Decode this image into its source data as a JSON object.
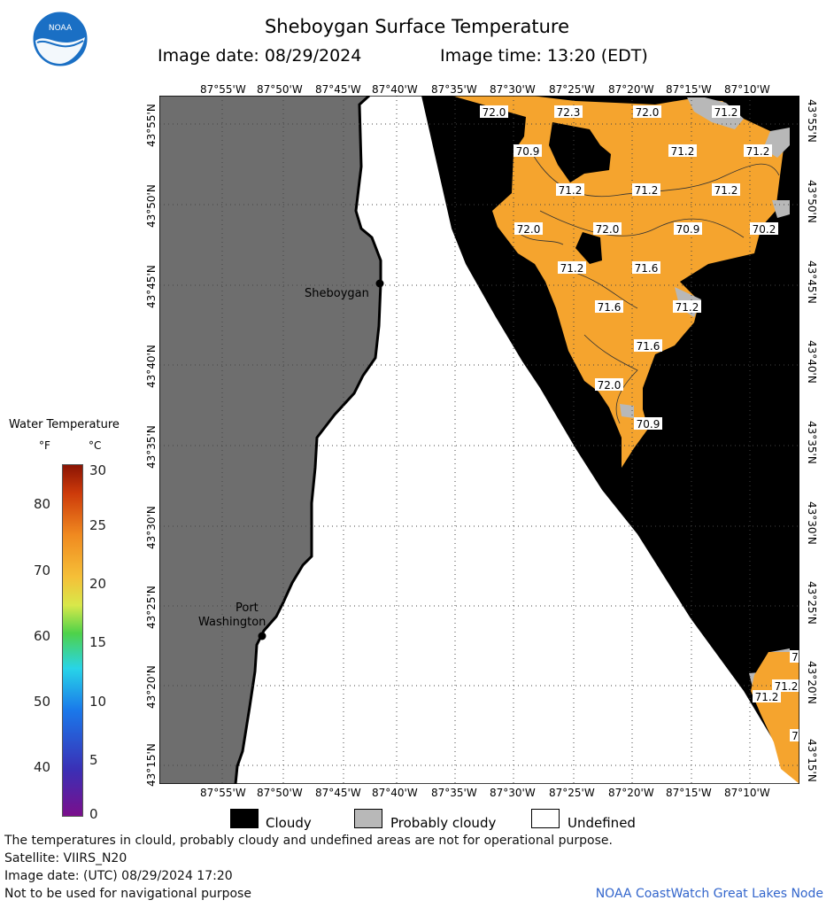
{
  "header": {
    "title": "Sheboygan Surface Temperature",
    "image_date": "Image date: 08/29/2024",
    "image_time": "Image time: 13:20 (EDT)"
  },
  "logo": {
    "text": "NOAA",
    "icon": "noaa-logo-icon",
    "colors": {
      "outer": "#1a6fc4",
      "bird": "#ffffff"
    }
  },
  "axes": {
    "lon_top": [
      "87°55'W",
      "87°50'W",
      "87°45'W",
      "87°40'W",
      "87°35'W",
      "87°30'W",
      "87°25'W",
      "87°20'W",
      "87°15'W",
      "87°10'W"
    ],
    "lon_bottom": [
      "87°55'W",
      "87°50'W",
      "87°45'W",
      "87°40'W",
      "87°35'W",
      "87°30'W",
      "87°25'W",
      "87°20'W",
      "87°15'W",
      "87°10'W"
    ],
    "lat_left": [
      "43°55'N",
      "43°50'N",
      "43°45'N",
      "43°40'N",
      "43°35'N",
      "43°30'N",
      "43°25'N",
      "43°20'N",
      "43°15'N"
    ],
    "lat_right": [
      "43°55'N",
      "43°50'N",
      "43°45'N",
      "43°40'N",
      "43°35'N",
      "43°30'N",
      "43°25'N",
      "43°20'N",
      "43°15'N"
    ]
  },
  "places": [
    {
      "name": "Sheboygan"
    },
    {
      "name": "Port"
    },
    {
      "name": "Washington"
    }
  ],
  "temperature_labels": [
    "72.0",
    "72.3",
    "72.0",
    "71.2",
    "70.9",
    "71.2",
    "71.2",
    "71.2",
    "71.2",
    "71.2",
    "72.0",
    "72.0",
    "70.9",
    "70.2",
    "71.2",
    "71.6",
    "71.6",
    "71.2",
    "71.6",
    "72.0",
    "70.9",
    "71.2",
    "7",
    "71.2",
    "7"
  ],
  "legend": {
    "title": "Water Temperature",
    "unit_f": "°F",
    "unit_c": "°C",
    "f_ticks": [
      "80",
      "70",
      "60",
      "50",
      "40"
    ],
    "c_ticks": [
      "30",
      "25",
      "20",
      "15",
      "10",
      "5",
      "0"
    ],
    "scale_range_c": [
      0,
      30
    ]
  },
  "key": {
    "cloudy": "Cloudy",
    "probably_cloudy": "Probably cloudy",
    "undefined": "Undefined",
    "colors": {
      "cloudy": "#000000",
      "probably_cloudy": "#b8b8b8",
      "undefined": "#ffffff",
      "land": "#6e6e6e",
      "water_warm": "#f5a42e"
    }
  },
  "footer": {
    "disclaimer": "The temperatures in clould, probably cloudy and undefined areas are not for operational purpose.",
    "satellite": "Satellite: VIIRS_N20",
    "utc_date": "Image date: (UTC) 08/29/2024  17:20",
    "navigation": "Not to be used for navigational purpose",
    "node": "NOAA CoastWatch Great Lakes Node"
  }
}
